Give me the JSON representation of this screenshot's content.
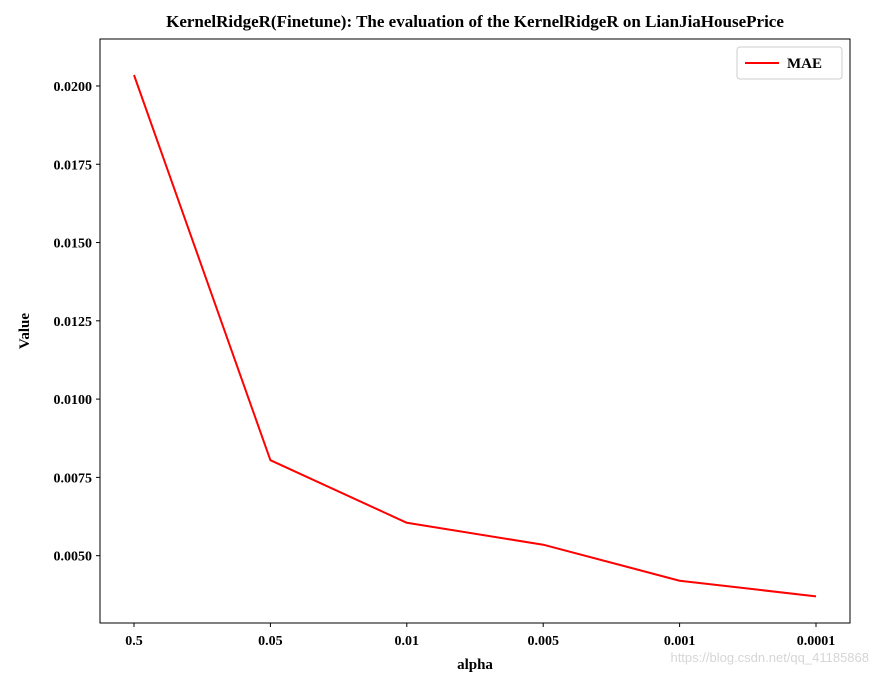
{
  "chart_data": {
    "type": "line",
    "title": "KernelRidgeR(Finetune): The evaluation of the KernelRidgeR on LianJiaHousePrice",
    "xlabel": "alpha",
    "ylabel": "Value",
    "categories": [
      "0.5",
      "0.05",
      "0.01",
      "0.005",
      "0.001",
      "0.0001"
    ],
    "series": [
      {
        "name": "MAE",
        "color": "#ff0000",
        "values": [
          0.02035,
          0.00805,
          0.00605,
          0.00535,
          0.0042,
          0.0037
        ]
      }
    ],
    "yticks": [
      0.005,
      0.0075,
      0.01,
      0.0125,
      0.015,
      0.0175,
      0.02
    ],
    "ytick_labels": [
      "0.0050",
      "0.0075",
      "0.0100",
      "0.0125",
      "0.0150",
      "0.0175",
      "0.0200"
    ],
    "ylim": [
      0.00285,
      0.0215
    ],
    "grid": false,
    "legend_position": "top-right"
  },
  "watermark": "https://blog.csdn.net/qq_41185868"
}
